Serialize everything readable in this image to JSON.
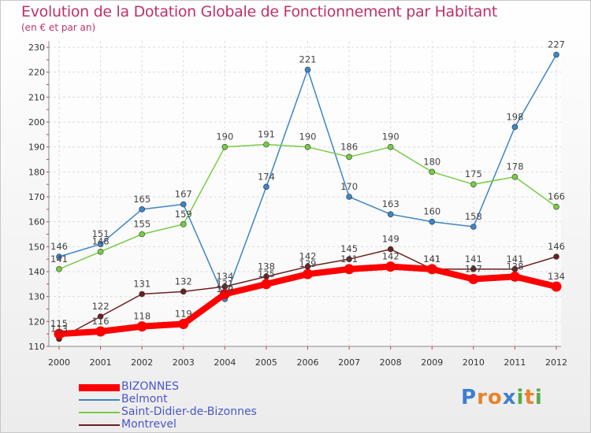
{
  "title": "Evolution de la Dotation Globale de Fonctionnement par Habitant",
  "subtitle": "(en € et par an)",
  "logo": {
    "letters": [
      "P",
      "r",
      "o",
      "x",
      "i",
      "t",
      "i"
    ],
    "colors": [
      "#3f7fcf",
      "#e8832a",
      "#e8832a",
      "#3f7fcf",
      "#5aa84a",
      "#e8832a",
      "#5aa84a"
    ]
  },
  "chart_data": {
    "type": "line",
    "title": "Evolution de la Dotation Globale de Fonctionnement par Habitant",
    "ylabel": "(en € et par an)",
    "x": [
      "2000",
      "2001",
      "2002",
      "2003",
      "2004",
      "2005",
      "2006",
      "2007",
      "2008",
      "2009",
      "2010",
      "2011",
      "2012"
    ],
    "ylim": [
      110,
      230
    ],
    "yticks": [
      "110",
      "120",
      "130",
      "140",
      "150",
      "160",
      "170",
      "180",
      "190",
      "200",
      "210",
      "220",
      "230"
    ],
    "grid": true,
    "series": [
      {
        "name": "BIZONNES",
        "color": "#ff0000",
        "values": [
          115,
          116,
          118,
          119,
          131,
          135,
          139,
          141,
          142,
          141,
          137,
          138,
          134
        ],
        "labels": [
          "115",
          "116",
          "118",
          "119",
          "131",
          "135",
          "139",
          "141",
          "142",
          "141",
          "137",
          "138",
          "134"
        ]
      },
      {
        "name": "Belmont",
        "color": "#3a86c8",
        "values": [
          146,
          151,
          165,
          167,
          129,
          174,
          221,
          170,
          163,
          160,
          158,
          198,
          227
        ],
        "labels": [
          "146",
          "151",
          "165",
          "167",
          "129",
          "174",
          "221",
          "170",
          "163",
          "160",
          "158",
          "198",
          "227"
        ]
      },
      {
        "name": "Saint-Didier-de-Bizonnes",
        "color": "#77cc44",
        "values": [
          141,
          148,
          155,
          159,
          190,
          191,
          190,
          186,
          190,
          180,
          175,
          178,
          166
        ],
        "labels": [
          "141",
          "148",
          "155",
          "159",
          "190",
          "191",
          "190",
          "186",
          "190",
          "180",
          "175",
          "178",
          "166"
        ]
      },
      {
        "name": "Montrevel",
        "color": "#6b1f1f",
        "values": [
          113,
          122,
          131,
          132,
          134,
          138,
          142,
          145,
          149,
          141,
          141,
          141,
          146
        ],
        "labels": [
          "113",
          "122",
          "131",
          "132",
          "134",
          "138",
          "142",
          "145",
          "149",
          "141",
          "141",
          "141",
          "146"
        ]
      }
    ]
  }
}
